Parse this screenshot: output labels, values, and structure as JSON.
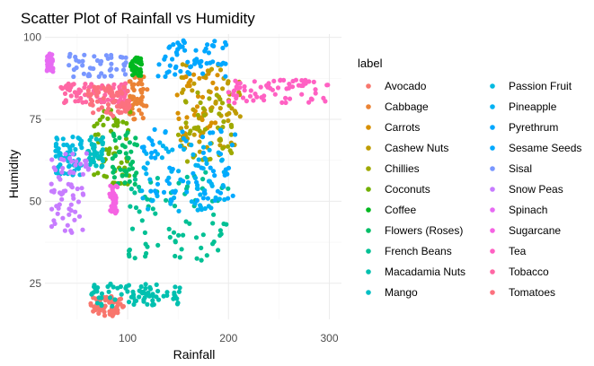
{
  "chart_data": {
    "type": "scatter",
    "title": "Scatter Plot of Rainfall vs Humidity",
    "xlabel": "Rainfall",
    "ylabel": "Humidity",
    "xlim": [
      18,
      312
    ],
    "ylim": [
      14,
      101
    ],
    "x_ticks": [
      100,
      200,
      300
    ],
    "y_ticks": [
      25,
      50,
      75,
      100
    ],
    "grid": true,
    "legend": {
      "title": "label",
      "placement": "right"
    },
    "series": [
      {
        "name": "Avocado",
        "color": "#F8766D",
        "x_range": [
          63,
          96
        ],
        "y_range": [
          15,
          21
        ],
        "n": 55
      },
      {
        "name": "Cabbage",
        "color": "#EB8335",
        "x_range": [
          100,
          120
        ],
        "y_range": [
          75,
          88
        ],
        "n": 45
      },
      {
        "name": "Carrots",
        "color": "#D89000",
        "x_range": [
          148,
          192
        ],
        "y_range": [
          68,
          90
        ],
        "n": 40
      },
      {
        "name": "Cashew Nuts",
        "color": "#BF9C00",
        "x_range": [
          152,
          212
        ],
        "y_range": [
          65,
          92
        ],
        "n": 60
      },
      {
        "name": "Chillies",
        "color": "#9FA900",
        "x_range": [
          150,
          205
        ],
        "y_range": [
          62,
          84
        ],
        "n": 45
      },
      {
        "name": "Coconuts",
        "color": "#72B000",
        "x_range": [
          64,
          103
        ],
        "y_range": [
          55,
          78
        ],
        "n": 55
      },
      {
        "name": "Coffee",
        "color": "#00B81F",
        "x_range": [
          102,
          114
        ],
        "y_range": [
          88,
          94
        ],
        "n": 35
      },
      {
        "name": "Flowers (Roses)",
        "color": "#00BE67",
        "x_range": [
          85,
          110
        ],
        "y_range": [
          55,
          72
        ],
        "n": 40
      },
      {
        "name": "French Beans",
        "color": "#00C094",
        "x_range": [
          100,
          200
        ],
        "y_range": [
          32,
          60
        ],
        "n": 80
      },
      {
        "name": "Macadamia Nuts",
        "color": "#00C0AF",
        "x_range": [
          64,
          155
        ],
        "y_range": [
          18,
          25
        ],
        "n": 80
      },
      {
        "name": "Mango",
        "color": "#00BFC4",
        "x_range": [
          60,
          76
        ],
        "y_range": [
          60,
          70
        ],
        "n": 40
      },
      {
        "name": "Passion Fruit",
        "color": "#00BAE0",
        "x_range": [
          28,
          56
        ],
        "y_range": [
          58,
          70
        ],
        "n": 65
      },
      {
        "name": "Pineapple",
        "color": "#00B2F3",
        "x_range": [
          108,
          196
        ],
        "y_range": [
          47,
          68
        ],
        "n": 70
      },
      {
        "name": "Pyrethrum",
        "color": "#00A7FF",
        "x_range": [
          130,
          198
        ],
        "y_range": [
          88,
          100
        ],
        "n": 60
      },
      {
        "name": "Sesame Seeds",
        "color": "#00A9FF",
        "x_range": [
          110,
          210
        ],
        "y_range": [
          50,
          72
        ],
        "n": 60
      },
      {
        "name": "Sisal",
        "color": "#7997FF",
        "x_range": [
          40,
          100
        ],
        "y_range": [
          88,
          95
        ],
        "n": 45
      },
      {
        "name": "Snow Peas",
        "color": "#C77CFF",
        "x_range": [
          24,
          62
        ],
        "y_range": [
          40,
          66
        ],
        "n": 70
      },
      {
        "name": "Spinach",
        "color": "#E76BF3",
        "x_range": [
          20,
          26
        ],
        "y_range": [
          89,
          95
        ],
        "n": 40
      },
      {
        "name": "Sugarcane",
        "color": "#F564E3",
        "x_range": [
          82,
          90
        ],
        "y_range": [
          46,
          56
        ],
        "n": 35
      },
      {
        "name": "Tea",
        "color": "#FF61C3",
        "x_range": [
          200,
          300
        ],
        "y_range": [
          80,
          87
        ],
        "n": 70
      },
      {
        "name": "Tobacco",
        "color": "#FF67A4",
        "x_range": [
          33,
          100
        ],
        "y_range": [
          80,
          86
        ],
        "n": 80
      },
      {
        "name": "Tomatoes",
        "color": "#FC717F",
        "x_range": [
          60,
          102
        ],
        "y_range": [
          76,
          85
        ],
        "n": 70
      }
    ]
  }
}
